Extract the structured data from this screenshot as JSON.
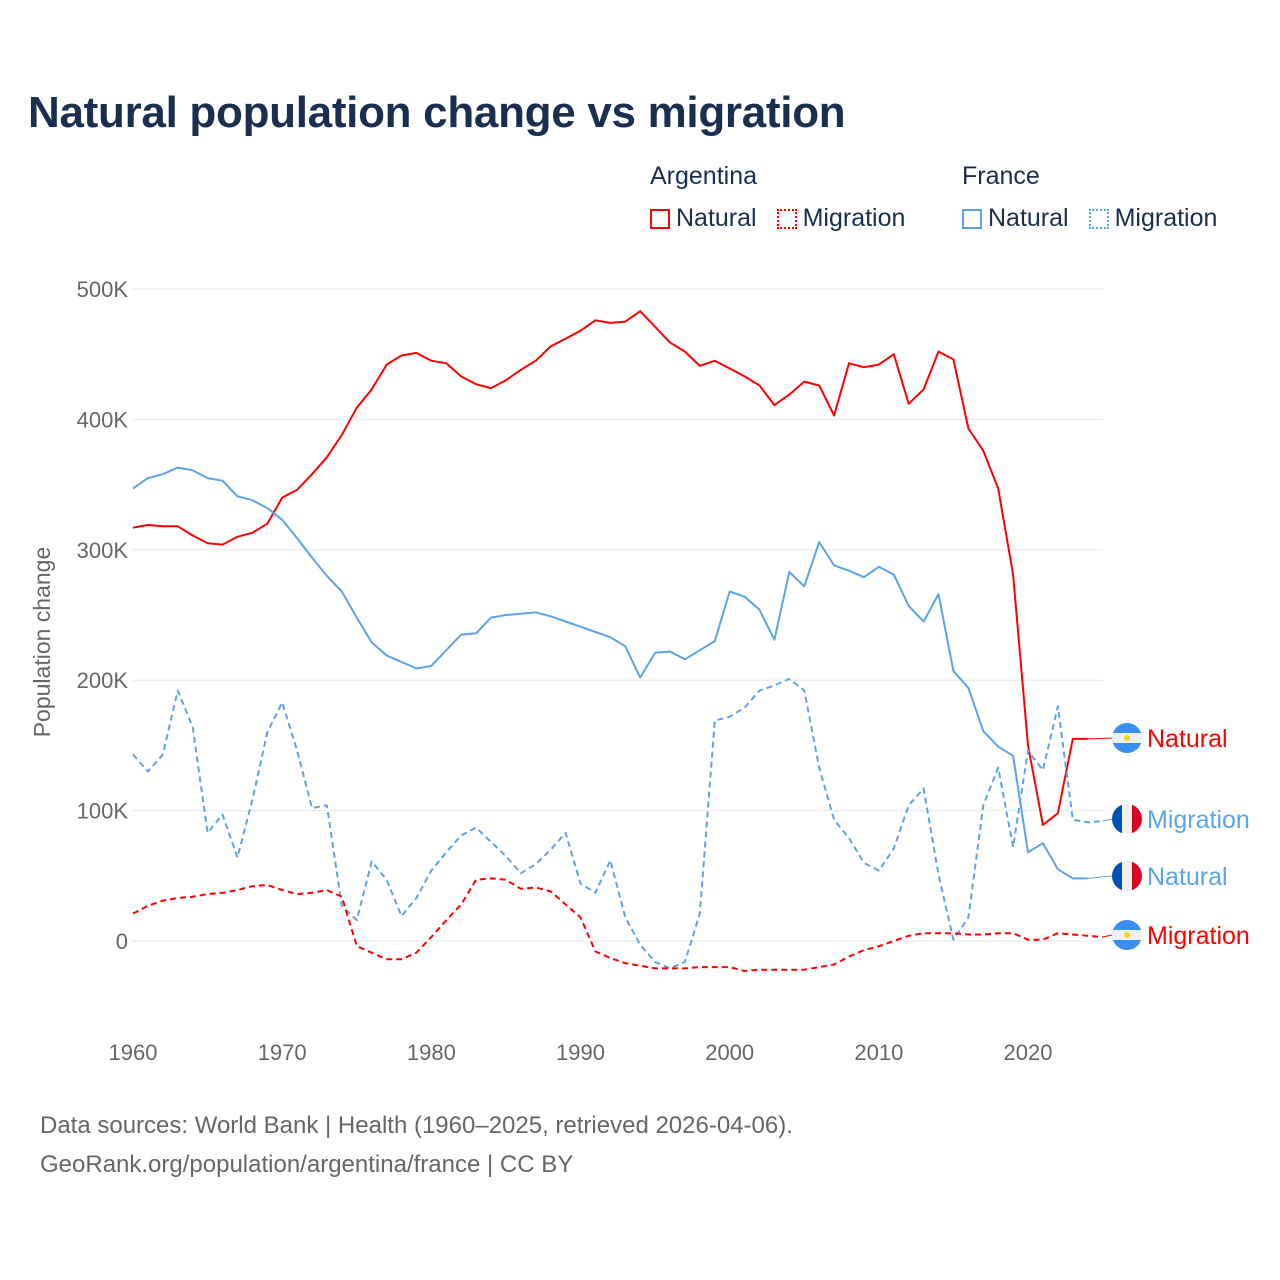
{
  "title": "Natural population change vs migration",
  "legend": {
    "groups": [
      {
        "country": "Argentina",
        "items": [
          {
            "label": "Natural",
            "color": "#ff0000",
            "style": "solid"
          },
          {
            "label": "Migration",
            "color": "#ff0000",
            "style": "dotted"
          }
        ]
      },
      {
        "country": "France",
        "items": [
          {
            "label": "Natural",
            "color": "#5ba3ea",
            "style": "solid"
          },
          {
            "label": "Migration",
            "color": "#5ba3ea",
            "style": "dotted"
          }
        ]
      }
    ]
  },
  "footer": {
    "line1": "Data sources: World Bank | Health (1960–2025, retrieved 2026-04-06).",
    "line2": "GeoRank.org/population/argentina/france | CC BY"
  },
  "chart_data": {
    "type": "line",
    "title": "Natural population change vs migration",
    "xlabel": "",
    "ylabel": "Population change",
    "xlim": [
      1960,
      2025
    ],
    "ylim": [
      -60000,
      500000
    ],
    "grid": true,
    "legend_placement": "top-right",
    "x_ticks": [
      1960,
      1970,
      1980,
      1990,
      2000,
      2010,
      2020
    ],
    "x_tick_labels": [
      "1960",
      "1970",
      "1980",
      "1990",
      "2000",
      "2010",
      "2020"
    ],
    "y_ticks": [
      0,
      100000,
      200000,
      300000,
      400000,
      500000
    ],
    "y_tick_labels": [
      "0",
      "100K",
      "200K",
      "300K",
      "400K",
      "500K"
    ],
    "series": [
      {
        "name": "Argentina Natural",
        "end_label": "Natural",
        "country": "Argentina",
        "color": "#ff0000",
        "dash": false,
        "start": 1960,
        "values": [
          317,
          319,
          318,
          318,
          311,
          305,
          304,
          310,
          313,
          320,
          340,
          346,
          358,
          371,
          388,
          409,
          423,
          442,
          449,
          451,
          445,
          443,
          433,
          427,
          424,
          430,
          438,
          445,
          456,
          462,
          468,
          476,
          474,
          475,
          483,
          471,
          459,
          452,
          441,
          445,
          439,
          433,
          426,
          411,
          419,
          429,
          426,
          403,
          443,
          440,
          442,
          450,
          412,
          423,
          452,
          446,
          393,
          376,
          347,
          281,
          150,
          89,
          98,
          155,
          155
        ]
      },
      {
        "name": "France Migration",
        "end_label": "Migration",
        "country": "France",
        "color": "#5ba3ea",
        "dash": true,
        "start": 1960,
        "values": [
          143,
          130,
          143,
          192,
          164,
          83,
          97,
          64,
          108,
          160,
          183,
          146,
          102,
          104,
          27,
          16,
          61,
          47,
          19,
          33,
          54,
          68,
          81,
          87,
          76,
          65,
          52,
          59,
          70,
          83,
          44,
          37,
          62,
          18,
          -3,
          -16,
          -21,
          -16,
          21,
          169,
          172,
          179,
          192,
          196,
          201,
          192,
          133,
          93,
          79,
          60,
          54,
          71,
          104,
          117,
          51,
          1,
          18,
          104,
          133,
          72,
          146,
          131,
          180,
          93,
          91,
          92
        ]
      },
      {
        "name": "France Natural",
        "end_label": "Natural",
        "country": "France",
        "color": "#5ba3ea",
        "dash": false,
        "start": 1960,
        "values": [
          347,
          355,
          358,
          363,
          361,
          355,
          353,
          341,
          338,
          332,
          323,
          309,
          294,
          280,
          268,
          248,
          229,
          219,
          214,
          209,
          211,
          223,
          235,
          236,
          248,
          250,
          251,
          252,
          249,
          245,
          241,
          237,
          233,
          226,
          202,
          221,
          222,
          216,
          223,
          230,
          268,
          264,
          254,
          231,
          283,
          272,
          306,
          288,
          284,
          279,
          287,
          281,
          257,
          245,
          266,
          207,
          194,
          161,
          149,
          142,
          68,
          75,
          55,
          48,
          48
        ]
      },
      {
        "name": "Argentina Migration",
        "end_label": "Migration",
        "country": "Argentina",
        "color": "#ff0000",
        "dash": true,
        "start": 1960,
        "values": [
          21,
          27,
          31,
          33,
          34,
          36,
          37,
          39,
          42,
          43,
          39,
          36,
          37,
          39,
          34,
          -4,
          -9,
          -14,
          -14,
          -9,
          3,
          16,
          28,
          47,
          48,
          47,
          40,
          41,
          38,
          28,
          18,
          -8,
          -13,
          -17,
          -19,
          -21,
          -21,
          -21,
          -20,
          -20,
          -20,
          -23,
          -22,
          -22,
          -22,
          -22,
          -20,
          -18,
          -12,
          -7,
          -4,
          0,
          4,
          6,
          6,
          6,
          5,
          5,
          6,
          6,
          1,
          1,
          6,
          5,
          4,
          3
        ]
      }
    ],
    "value_units": "thousands"
  }
}
